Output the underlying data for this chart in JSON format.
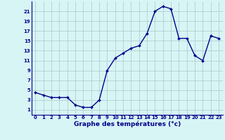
{
  "hours": [
    0,
    1,
    2,
    3,
    4,
    5,
    6,
    7,
    8,
    9,
    10,
    11,
    12,
    13,
    14,
    15,
    16,
    17,
    18,
    19,
    20,
    21,
    22,
    23
  ],
  "temps": [
    4.5,
    4.0,
    3.5,
    3.5,
    3.5,
    2.0,
    1.5,
    1.5,
    3.0,
    9.0,
    11.5,
    12.5,
    13.5,
    14.0,
    16.5,
    21.0,
    22.0,
    21.5,
    15.5,
    15.5,
    12.0,
    11.0,
    16.0,
    15.5
  ],
  "line_color": "#00008B",
  "marker": "D",
  "marker_size": 2,
  "bg_color": "#D8F5F5",
  "grid_color": "#A8C8C8",
  "xlabel": "Graphe des températures (°c)",
  "xlabel_color": "#00008B",
  "tick_color": "#00008B",
  "ylim": [
    0,
    23
  ],
  "xlim": [
    -0.5,
    23.5
  ],
  "yticks": [
    1,
    3,
    5,
    7,
    9,
    11,
    13,
    15,
    17,
    19,
    21
  ],
  "xticks": [
    0,
    1,
    2,
    3,
    4,
    5,
    6,
    7,
    8,
    9,
    10,
    11,
    12,
    13,
    14,
    15,
    16,
    17,
    18,
    19,
    20,
    21,
    22,
    23
  ],
  "xtick_labels": [
    "0",
    "1",
    "2",
    "3",
    "4",
    "5",
    "6",
    "7",
    "8",
    "9",
    "10",
    "11",
    "12",
    "13",
    "14",
    "15",
    "16",
    "17",
    "18",
    "19",
    "20",
    "21",
    "22",
    "23"
  ],
  "line_width": 1.0,
  "tick_fontsize": 5.0,
  "xlabel_fontsize": 6.5
}
